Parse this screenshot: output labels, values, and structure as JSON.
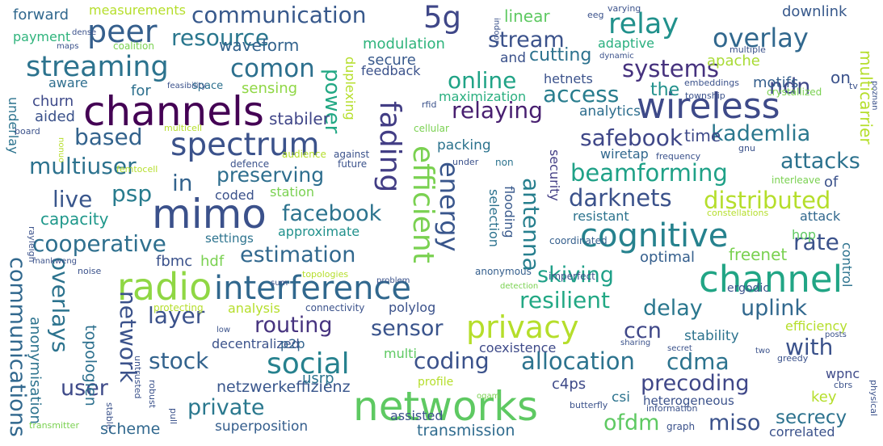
{
  "words": [
    {
      "text": "networks",
      "color": "#5ec962"
    },
    {
      "text": "mimo",
      "color": "#3b518b"
    },
    {
      "text": "channels",
      "color": "#440154"
    },
    {
      "text": "radio",
      "color": "#8fd744"
    },
    {
      "text": "interference",
      "color": "#31688e"
    },
    {
      "text": "channel",
      "color": "#21a585"
    },
    {
      "text": "wireless",
      "color": "#3e4a89"
    },
    {
      "text": "spectrum",
      "color": "#3b528b"
    },
    {
      "text": "cognitive",
      "color": "#26828e"
    },
    {
      "text": "social",
      "color": "#26818e"
    },
    {
      "text": "privacy",
      "color": "#b5de2b"
    },
    {
      "text": "streaming",
      "color": "#2c738e"
    },
    {
      "text": "peer",
      "color": "#355f8d"
    },
    {
      "text": "communication",
      "color": "#38598c"
    },
    {
      "text": "resource",
      "color": "#2a778e"
    },
    {
      "text": "relay",
      "color": "#21918c"
    },
    {
      "text": "overlay",
      "color": "#31688e"
    },
    {
      "text": "stream",
      "color": "#3b528b"
    },
    {
      "text": "5g",
      "color": "#3f4788"
    },
    {
      "text": "comon",
      "color": "#2d708e"
    },
    {
      "text": "power",
      "color": "#22a884"
    },
    {
      "text": "fading",
      "color": "#433e85"
    },
    {
      "text": "efficient",
      "color": "#7ad151"
    },
    {
      "text": "energy",
      "color": "#39568c"
    },
    {
      "text": "antenna",
      "color": "#277f8e"
    },
    {
      "text": "beamforming",
      "color": "#1fa187"
    },
    {
      "text": "distributed",
      "color": "#b5de2b"
    },
    {
      "text": "darknets",
      "color": "#3b528b"
    },
    {
      "text": "kademlia",
      "color": "#2a788e"
    },
    {
      "text": "safebook",
      "color": "#3f4788"
    },
    {
      "text": "attacks",
      "color": "#2c728e"
    },
    {
      "text": "systems",
      "color": "#46327e"
    },
    {
      "text": "ndn",
      "color": "#3f4889"
    },
    {
      "text": "online",
      "color": "#20a386"
    },
    {
      "text": "access",
      "color": "#287d8e"
    },
    {
      "text": "relaying",
      "color": "#481f70"
    },
    {
      "text": "multiuser",
      "color": "#2c728e"
    },
    {
      "text": "based",
      "color": "#33638d"
    },
    {
      "text": "live",
      "color": "#39568c"
    },
    {
      "text": "psp",
      "color": "#287c8e"
    },
    {
      "text": "in",
      "color": "#33638d"
    },
    {
      "text": "preserving",
      "color": "#2e6e8e"
    },
    {
      "text": "facebook",
      "color": "#2c738e"
    },
    {
      "text": "cooperative",
      "color": "#2e6f8e"
    },
    {
      "text": "estimation",
      "color": "#31688e"
    },
    {
      "text": "communications",
      "color": "#31688e"
    },
    {
      "text": "overlays",
      "color": "#2c738e"
    },
    {
      "text": "network",
      "color": "#3b528b"
    },
    {
      "text": "layer",
      "color": "#3b528b"
    },
    {
      "text": "routing",
      "color": "#46337f"
    },
    {
      "text": "sensor",
      "color": "#3a548c"
    },
    {
      "text": "stock",
      "color": "#33638d"
    },
    {
      "text": "coding",
      "color": "#3b528b"
    },
    {
      "text": "allocation",
      "color": "#2c738e"
    },
    {
      "text": "cdma",
      "color": "#2c738e"
    },
    {
      "text": "precoding",
      "color": "#3f4788"
    },
    {
      "text": "skiving",
      "color": "#1fa088"
    },
    {
      "text": "resilient",
      "color": "#22a884"
    },
    {
      "text": "delay",
      "color": "#2a778e"
    },
    {
      "text": "uplink",
      "color": "#31688e"
    },
    {
      "text": "ccn",
      "color": "#3f4788"
    },
    {
      "text": "with",
      "color": "#3b528b"
    },
    {
      "text": "rate",
      "color": "#3b528b"
    },
    {
      "text": "user",
      "color": "#3e4a89"
    },
    {
      "text": "private",
      "color": "#2a788e"
    },
    {
      "text": "ofdm",
      "color": "#5ec962"
    },
    {
      "text": "miso",
      "color": "#3b528b"
    },
    {
      "text": "secrecy",
      "color": "#2c728e"
    },
    {
      "text": "transmission",
      "color": "#2f6b8e"
    },
    {
      "text": "superposition",
      "color": "#355e8d"
    },
    {
      "text": "scheme",
      "color": "#31688e"
    },
    {
      "text": "netzwerkeffizienz",
      "color": "#39568c"
    },
    {
      "text": "topologien",
      "color": "#2d708e"
    },
    {
      "text": "freenet",
      "color": "#7ad151"
    },
    {
      "text": "capacity",
      "color": "#1f988b"
    },
    {
      "text": "stabiler",
      "color": "#404688"
    },
    {
      "text": "forward",
      "color": "#31688e"
    },
    {
      "text": "payment",
      "color": "#2fb47c"
    },
    {
      "text": "measurements",
      "color": "#b5de2b"
    },
    {
      "text": "waveform",
      "color": "#33638d"
    },
    {
      "text": "modulation",
      "color": "#2fb47c"
    },
    {
      "text": "secure",
      "color": "#38598c"
    },
    {
      "text": "linear",
      "color": "#5ec962"
    },
    {
      "text": "cutting",
      "color": "#2c728e"
    },
    {
      "text": "and",
      "color": "#3b528b"
    },
    {
      "text": "apache",
      "color": "#a8db34"
    },
    {
      "text": "downlink",
      "color": "#38598c"
    },
    {
      "text": "adaptive",
      "color": "#29af7f"
    },
    {
      "text": "the",
      "color": "#21918c"
    },
    {
      "text": "motifs",
      "color": "#355f8d"
    },
    {
      "text": "on",
      "color": "#3b528b"
    },
    {
      "text": "multicarrier",
      "color": "#b5de2b"
    },
    {
      "text": "hetnets",
      "color": "#3b528b"
    },
    {
      "text": "analytics",
      "color": "#2e6e8e"
    },
    {
      "text": "time",
      "color": "#3e4a89"
    },
    {
      "text": "maximization",
      "color": "#29af7f"
    },
    {
      "text": "feedback",
      "color": "#3b528b"
    },
    {
      "text": "sensing",
      "color": "#8fd744"
    },
    {
      "text": "for",
      "color": "#2d708e"
    },
    {
      "text": "churn",
      "color": "#3e4a89"
    },
    {
      "text": "aware",
      "color": "#2e6e8e"
    },
    {
      "text": "aided",
      "color": "#3b528b"
    },
    {
      "text": "space",
      "color": "#2d708e"
    },
    {
      "text": "duplexing",
      "color": "#b5de2b"
    },
    {
      "text": "packing",
      "color": "#2c738e"
    },
    {
      "text": "wiretap",
      "color": "#31688e"
    },
    {
      "text": "security",
      "color": "#433e85"
    },
    {
      "text": "selection",
      "color": "#2c728e"
    },
    {
      "text": "flooding",
      "color": "#38598c"
    },
    {
      "text": "approximate",
      "color": "#21918c"
    },
    {
      "text": "resistant",
      "color": "#2c738e"
    },
    {
      "text": "hop",
      "color": "#5ec962"
    },
    {
      "text": "attack",
      "color": "#31688e"
    },
    {
      "text": "of",
      "color": "#3b528b"
    },
    {
      "text": "coded",
      "color": "#3b528b"
    },
    {
      "text": "station",
      "color": "#7ad151"
    },
    {
      "text": "settings",
      "color": "#2c738e"
    },
    {
      "text": "fbmc",
      "color": "#3b528b"
    },
    {
      "text": "hdf",
      "color": "#7ad151"
    },
    {
      "text": "optimal",
      "color": "#355f8d"
    },
    {
      "text": "control",
      "color": "#2c728e"
    },
    {
      "text": "stability",
      "color": "#2c738e"
    },
    {
      "text": "analysis",
      "color": "#b5de2b"
    },
    {
      "text": "polylog",
      "color": "#3b528b"
    },
    {
      "text": "decentralized",
      "color": "#3b528b"
    },
    {
      "text": "p2p",
      "color": "#33638d"
    },
    {
      "text": "multi",
      "color": "#5ec962"
    },
    {
      "text": "coexistence",
      "color": "#3e4a89"
    },
    {
      "text": "c4ps",
      "color": "#3e4a89"
    },
    {
      "text": "csi",
      "color": "#2c738e"
    },
    {
      "text": "key",
      "color": "#b5de2b"
    },
    {
      "text": "wpnc",
      "color": "#3e4a89"
    },
    {
      "text": "usrp",
      "color": "#2c738e"
    },
    {
      "text": "profile",
      "color": "#b5de2b"
    },
    {
      "text": "assisted",
      "color": "#3b528b"
    },
    {
      "text": "correlated",
      "color": "#3b528b"
    },
    {
      "text": "heterogeneous",
      "color": "#3b528b"
    },
    {
      "text": "anonymisation",
      "color": "#2c738e"
    },
    {
      "text": "underlay",
      "color": "#2c738e"
    },
    {
      "text": "efficiency",
      "color": "#b5de2b"
    },
    {
      "text": "ergodic",
      "color": "#3b528b"
    },
    {
      "text": "connectivity",
      "color": "#3b528b"
    },
    {
      "text": "coordinated",
      "color": "#355f8d"
    },
    {
      "text": "anonymous",
      "color": "#355f8d"
    },
    {
      "text": "imperfect",
      "color": "#3b528b"
    },
    {
      "text": "cellular",
      "color": "#7ad151"
    },
    {
      "text": "against",
      "color": "#3b528b"
    },
    {
      "text": "under",
      "color": "#3b528b"
    },
    {
      "text": "non",
      "color": "#2c738e"
    },
    {
      "text": "audience",
      "color": "#b5de2b"
    },
    {
      "text": "defence",
      "color": "#3b528b"
    },
    {
      "text": "future",
      "color": "#3b528b"
    },
    {
      "text": "rfid",
      "color": "#3b528b"
    },
    {
      "text": "indoor",
      "color": "#3b528b"
    },
    {
      "text": "eeg",
      "color": "#3b528b"
    },
    {
      "text": "varying",
      "color": "#3b528b"
    },
    {
      "text": "dynamic",
      "color": "#3b528b"
    },
    {
      "text": "multiple",
      "color": "#3b528b"
    },
    {
      "text": "embeddings",
      "color": "#3b528b"
    },
    {
      "text": "township",
      "color": "#3b528b"
    },
    {
      "text": "tv",
      "color": "#3b528b"
    },
    {
      "text": "crystallized",
      "color": "#7ad151"
    },
    {
      "text": "poznan",
      "color": "#3b528b"
    },
    {
      "text": "frequency",
      "color": "#3b528b"
    },
    {
      "text": "gnu",
      "color": "#3b528b"
    },
    {
      "text": "interleave",
      "color": "#7ad151"
    },
    {
      "text": "constellations",
      "color": "#b5de2b"
    },
    {
      "text": "femtocell",
      "color": "#b5de2b"
    },
    {
      "text": "multicell",
      "color": "#b5de2b"
    },
    {
      "text": "feasibility",
      "color": "#3b528b"
    },
    {
      "text": "coalition",
      "color": "#7ad151"
    },
    {
      "text": "maps",
      "color": "#3b528b"
    },
    {
      "text": "dense",
      "color": "#3b528b"
    },
    {
      "text": "board",
      "color": "#3b528b"
    },
    {
      "text": "nonuo",
      "color": "#b5de2b"
    },
    {
      "text": "rayleigh",
      "color": "#3b528b"
    },
    {
      "text": "mankweng",
      "color": "#3b528b"
    },
    {
      "text": "noise",
      "color": "#3b528b"
    },
    {
      "text": "sum",
      "color": "#3b528b"
    },
    {
      "text": "topologies",
      "color": "#b5de2b"
    },
    {
      "text": "problem",
      "color": "#3b528b"
    },
    {
      "text": "detection",
      "color": "#7ad151"
    },
    {
      "text": "protecting",
      "color": "#b5de2b"
    },
    {
      "text": "untrusted",
      "color": "#3b528b"
    },
    {
      "text": "low",
      "color": "#3b528b"
    },
    {
      "text": "robust",
      "color": "#3b528b"
    },
    {
      "text": "stable",
      "color": "#3b528b"
    },
    {
      "text": "pull",
      "color": "#3b528b"
    },
    {
      "text": "transmitter",
      "color": "#7ad151"
    },
    {
      "text": "butterfly",
      "color": "#3b528b"
    },
    {
      "text": "information",
      "color": "#3b528b"
    },
    {
      "text": "graph",
      "color": "#3b528b"
    },
    {
      "text": "physical",
      "color": "#3b528b"
    },
    {
      "text": "cbrs",
      "color": "#3b528b"
    },
    {
      "text": "posts",
      "color": "#3b528b"
    },
    {
      "text": "two",
      "color": "#3b528b"
    },
    {
      "text": "secret",
      "color": "#3b528b"
    },
    {
      "text": "sharing",
      "color": "#3b528b"
    },
    {
      "text": "greedy",
      "color": "#3b528b"
    },
    {
      "text": "oqam",
      "color": "#7ad151"
    }
  ]
}
